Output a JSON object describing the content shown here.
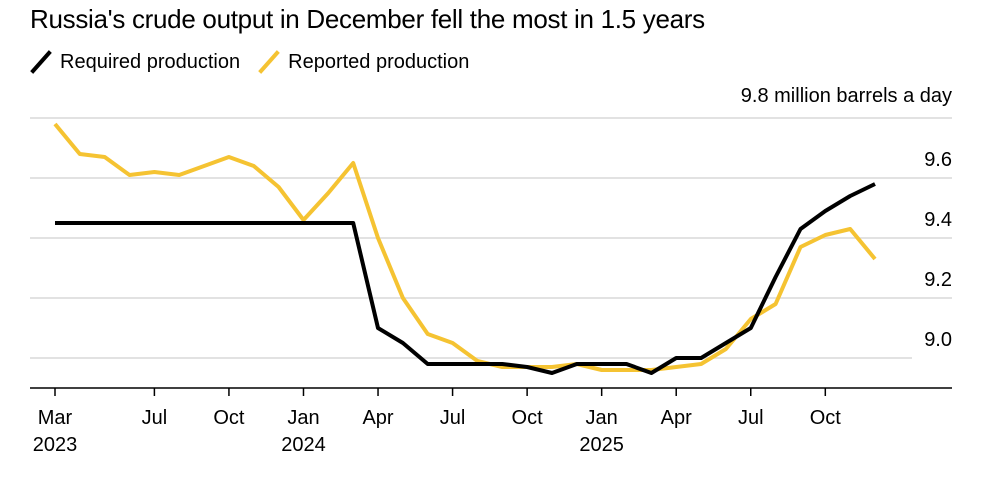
{
  "title": "Russia's crude output in December fell the most in 1.5 years",
  "unit_label": "9.8 million barrels a day",
  "colors": {
    "required": "#000000",
    "reported": "#f5c332",
    "grid": "#d9d9d9",
    "axis": "#000000"
  },
  "chart_data": {
    "type": "line",
    "title": "Russia's crude output in December fell the most in 1.5 years",
    "ylabel": "9.8 million barrels a day",
    "ylim": [
      8.9,
      9.8
    ],
    "y_ticks": [
      9.0,
      9.2,
      9.4,
      9.6
    ],
    "y_tick_labels": [
      "9.0",
      "9.2",
      "9.4",
      "9.6"
    ],
    "y_top_label": "9.8 million barrels a day",
    "grid": true,
    "legend_position": "top-left",
    "x": [
      "2023-03",
      "2023-04",
      "2023-05",
      "2023-06",
      "2023-07",
      "2023-08",
      "2023-09",
      "2023-10",
      "2023-11",
      "2023-12",
      "2024-01",
      "2024-02",
      "2024-03",
      "2024-04",
      "2024-05",
      "2024-06",
      "2024-07",
      "2024-08",
      "2024-09",
      "2024-10",
      "2024-11",
      "2024-12",
      "2025-01",
      "2025-02",
      "2025-03",
      "2025-04",
      "2025-05",
      "2025-06",
      "2025-07",
      "2025-08",
      "2025-09",
      "2025-10",
      "2025-11",
      "2025-12"
    ],
    "x_ticks": [
      {
        "date": "2023-03",
        "label": "Mar",
        "year": "2023"
      },
      {
        "date": "2023-07",
        "label": "Jul",
        "year": ""
      },
      {
        "date": "2023-10",
        "label": "Oct",
        "year": ""
      },
      {
        "date": "2024-01",
        "label": "Jan",
        "year": "2024"
      },
      {
        "date": "2024-04",
        "label": "Apr",
        "year": ""
      },
      {
        "date": "2024-07",
        "label": "Jul",
        "year": ""
      },
      {
        "date": "2024-10",
        "label": "Oct",
        "year": ""
      },
      {
        "date": "2025-01",
        "label": "Jan",
        "year": "2025"
      },
      {
        "date": "2025-04",
        "label": "Apr",
        "year": ""
      },
      {
        "date": "2025-07",
        "label": "Jul",
        "year": ""
      },
      {
        "date": "2025-10",
        "label": "Oct",
        "year": ""
      }
    ],
    "series": [
      {
        "name": "Required production",
        "color": "#000000",
        "values": [
          9.45,
          9.45,
          9.45,
          9.45,
          9.45,
          9.45,
          9.45,
          9.45,
          9.45,
          9.45,
          9.45,
          9.45,
          9.45,
          9.1,
          9.05,
          8.98,
          8.98,
          8.98,
          8.98,
          8.97,
          8.95,
          8.98,
          8.98,
          8.98,
          8.95,
          9.0,
          9.0,
          9.05,
          9.1,
          9.27,
          9.43,
          9.49,
          9.54,
          9.58
        ]
      },
      {
        "name": "Reported production",
        "color": "#f5c332",
        "values": [
          9.78,
          9.68,
          9.67,
          9.61,
          9.62,
          9.61,
          9.64,
          9.67,
          9.64,
          9.57,
          9.46,
          9.55,
          9.65,
          9.4,
          9.2,
          9.08,
          9.05,
          8.99,
          8.97,
          8.97,
          8.97,
          8.98,
          8.96,
          8.96,
          8.96,
          8.97,
          8.98,
          9.03,
          9.13,
          9.18,
          9.37,
          9.41,
          9.43,
          9.33
        ]
      }
    ]
  }
}
